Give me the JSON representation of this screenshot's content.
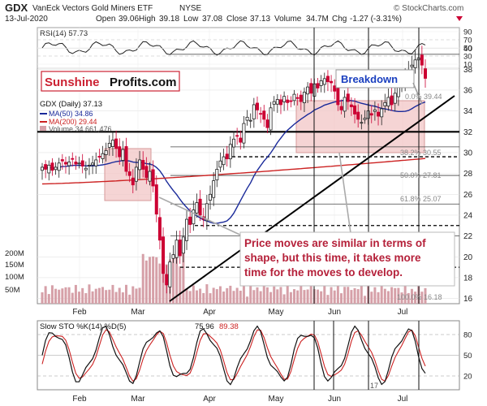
{
  "header": {
    "ticker": "GDX",
    "name": "VanEck Vectors Gold Miners ETF",
    "exchange": "NYSE",
    "date": "13-Jul-2020",
    "open_label": "Open",
    "open": "39.06",
    "high_label": "High",
    "high": "39.18",
    "low_label": "Low",
    "low": "37.08",
    "close_label": "Close",
    "close": "37.13",
    "volume_label": "Volume",
    "volume": "34.7M",
    "chg_label": "Chg",
    "chg": "-1.27 (-3.31%)",
    "credit": "© StockCharts.com"
  },
  "rsi": {
    "legend": "RSI(14) 57.73",
    "ticks": [
      "90",
      "70",
      "50",
      "30",
      "10"
    ]
  },
  "logo": {
    "part1": "Sunshine",
    "part2": "Profits.com"
  },
  "breakdown_label": "Breakdown",
  "legend": {
    "price": "GDX (Daily) 37.13",
    "ma50": "MA(50) 34.86",
    "ma200": "MA(200) 29.44",
    "volume": "Volume 34,661,476"
  },
  "fib_labels": {
    "f0": "0.0% 39.44",
    "f382": "38.2% 30.55",
    "f50": "50.0% 27.81",
    "f618": "61.8% 25.07",
    "f100": "100.0% 16.18"
  },
  "volume_ticks": [
    "200M",
    "150M",
    "100M",
    "50M"
  ],
  "annotation": "Price moves are similar in terms of shape, but this time, it takes more time for the moves to develop.",
  "stoch": {
    "legend_prefix": "Slow STO %K(14) %D(5)",
    "k_value": "75.96",
    "d_value": "89.38",
    "ticks": [
      "80",
      "50",
      "20"
    ],
    "extra_label": "17"
  },
  "colors": {
    "price_up": "#222222",
    "price_down": "#cc0033",
    "ma50": "#1a2a9a",
    "ma200": "#cc2222",
    "volume": "#d6a0a8",
    "highlight": "#f2c6c6",
    "annotation_text": "#b5213a",
    "breakdown_text": "#1a3fbf",
    "logo_red": "#cc2233"
  },
  "chart_data": {
    "type": "candlestick",
    "ylim": [
      15.5,
      42
    ],
    "y_ticks": [
      16,
      18,
      20,
      22,
      24,
      26,
      28,
      30,
      32,
      34,
      36,
      38,
      40
    ],
    "x_month_labels": [
      "Feb",
      "Mar",
      "Apr",
      "May",
      "Jun",
      "Jul"
    ],
    "closes": [
      28.6,
      28.4,
      28.8,
      28.3,
      28.6,
      29.0,
      29.2,
      28.9,
      29.1,
      29.4,
      28.9,
      29.0,
      28.7,
      28.5,
      28.8,
      29.0,
      29.3,
      29.6,
      29.9,
      30.2,
      30.9,
      31.2,
      30.4,
      29.6,
      30.3,
      28.2,
      27.8,
      26.9,
      28.6,
      29.3,
      28.4,
      27.6,
      28.2,
      26.8,
      24.1,
      21.6,
      18.4,
      17.3,
      19.5,
      20.2,
      21.6,
      20.1,
      21.9,
      23.6,
      23.1,
      24.5,
      25.2,
      24.0,
      23.6,
      25.1,
      26.0,
      27.3,
      28.4,
      29.2,
      29.6,
      29.4,
      30.8,
      31.3,
      31.6,
      31.0,
      32.8,
      33.4,
      33.1,
      34.6,
      34.1,
      33.7,
      33.2,
      32.4,
      34.3,
      34.9,
      35.1,
      34.6,
      35.4,
      34.8,
      34.9,
      35.6,
      35.2,
      34.9,
      35.8,
      36.3,
      35.7,
      36.6,
      36.2,
      36.9,
      37.1,
      36.8,
      36.7,
      35.9,
      34.6,
      34.1,
      35.3,
      34.9,
      34.4,
      33.7,
      33.2,
      32.9,
      33.3,
      34.0,
      33.6,
      34.1,
      33.5,
      34.2,
      34.8,
      35.3,
      34.6,
      35.7,
      36.4,
      36.8,
      37.2,
      37.9,
      38.4,
      38.9,
      39.1,
      38.4,
      37.13
    ],
    "ma50": {
      "start": 28.4,
      "end": 34.86
    },
    "ma200": {
      "start": 27.0,
      "end": 29.44
    },
    "horizontal_levels": [
      39.44,
      32.0,
      30.55,
      29.6,
      27.81,
      25.07,
      23.0,
      22.0,
      19.0
    ],
    "fibonacci": [
      {
        "level": "0.0%",
        "value": 39.44
      },
      {
        "level": "38.2%",
        "value": 30.55
      },
      {
        "level": "50.0%",
        "value": 27.81
      },
      {
        "level": "61.8%",
        "value": 25.07
      },
      {
        "level": "100.0%",
        "value": 16.18
      }
    ],
    "stochastic": {
      "k": 75.96,
      "d": 89.38,
      "levels": [
        80,
        50,
        20
      ]
    },
    "rsi": {
      "value": 57.73,
      "levels": [
        90,
        70,
        50,
        30,
        10
      ]
    }
  }
}
